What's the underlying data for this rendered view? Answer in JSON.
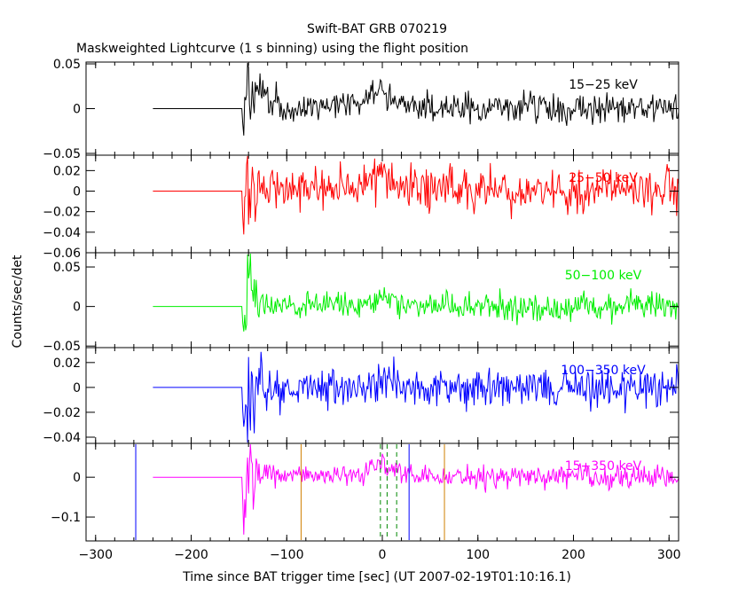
{
  "chart_data": {
    "type": "line",
    "title": "Swift-BAT GRB 070219",
    "subtitle": "Maskweighted Lightcurve (1 s binning) using the flight position",
    "xlabel": "Time since BAT trigger time [sec] (UT 2007-02-19T01:10:16.1)",
    "ylabel": "Counts/sec/det",
    "xlim": [
      -310,
      310
    ],
    "xticks": [
      "−300",
      "−200",
      "−100",
      "0",
      "100",
      "200",
      "300"
    ],
    "xtick_values": [
      -300,
      -200,
      -100,
      0,
      100,
      200,
      300
    ],
    "grid": false,
    "panels": [
      {
        "band": "15−25 keV",
        "color": "#000000",
        "ylim": [
          -0.052,
          0.052
        ],
        "ytick_values": [
          -0.05,
          0,
          0.05
        ],
        "ytick_labels": [
          "−0.05",
          "0",
          "0.05"
        ],
        "x": [
          -240,
          -147,
          -140,
          -130,
          -100,
          -60,
          -20,
          -5,
          0,
          5,
          20,
          60,
          100,
          200,
          310
        ],
        "y": [
          0,
          0,
          0.028,
          0.012,
          0.002,
          0.003,
          0.006,
          0.016,
          0.028,
          0.012,
          0.005,
          0.002,
          0.001,
          0.001,
          0.001
        ],
        "noise": [
          0,
          0,
          0.03,
          0.014,
          0.007,
          0.007,
          0.007,
          0.007,
          0.007,
          0.007,
          0.008,
          0.008,
          0.008,
          0.008,
          0.008
        ]
      },
      {
        "band": "25−50 keV",
        "color": "#ff0000",
        "ylim": [
          -0.06,
          0.035
        ],
        "ytick_values": [
          -0.06,
          -0.04,
          -0.02,
          0,
          0.02
        ],
        "ytick_labels": [
          "−0.06",
          "−0.04",
          "−0.02",
          "0",
          "0.02"
        ],
        "x": [
          -240,
          -147,
          -140,
          -130,
          -100,
          -60,
          -20,
          -5,
          0,
          5,
          20,
          60,
          100,
          200,
          310
        ],
        "y": [
          0,
          0,
          0.004,
          0.004,
          0.002,
          0.002,
          0.005,
          0.012,
          0.022,
          0.01,
          0.004,
          0.002,
          0.001,
          0.001,
          0.001
        ],
        "noise": [
          0,
          0,
          0.028,
          0.016,
          0.01,
          0.01,
          0.01,
          0.01,
          0.01,
          0.01,
          0.011,
          0.011,
          0.011,
          0.011,
          0.011
        ]
      },
      {
        "band": "50−100 keV",
        "color": "#00ee00",
        "ylim": [
          -0.052,
          0.068
        ],
        "ytick_values": [
          -0.05,
          0,
          0.05
        ],
        "ytick_labels": [
          "−0.05",
          "0",
          "0.05"
        ],
        "x": [
          -240,
          -147,
          -140,
          -130,
          -100,
          -60,
          -20,
          -5,
          0,
          5,
          20,
          60,
          100,
          200,
          310
        ],
        "y": [
          0,
          0,
          0.012,
          0.004,
          0.002,
          0.002,
          0.004,
          0.008,
          0.014,
          0.006,
          0.002,
          0.001,
          0.001,
          0,
          0
        ],
        "noise": [
          0,
          0,
          0.035,
          0.014,
          0.008,
          0.008,
          0.008,
          0.008,
          0.008,
          0.008,
          0.009,
          0.009,
          0.009,
          0.009,
          0.009
        ]
      },
      {
        "band": "100−350 keV",
        "color": "#0000ff",
        "ylim": [
          -0.045,
          0.032
        ],
        "ytick_values": [
          -0.04,
          -0.02,
          0,
          0.02
        ],
        "ytick_labels": [
          "−0.04",
          "−0.02",
          "0",
          "0.02"
        ],
        "x": [
          -240,
          -147,
          -140,
          -130,
          -100,
          -60,
          -20,
          -5,
          0,
          5,
          20,
          60,
          100,
          200,
          310
        ],
        "y": [
          0,
          0,
          0.004,
          -0.004,
          -0.002,
          0.0,
          0.001,
          0.002,
          0.004,
          0.002,
          0.001,
          0.0,
          0.0,
          0.0,
          0.0
        ],
        "noise": [
          0,
          0,
          0.03,
          0.014,
          0.008,
          0.008,
          0.008,
          0.008,
          0.008,
          0.008,
          0.008,
          0.008,
          0.008,
          0.008,
          0.008
        ]
      },
      {
        "band": "15−350 keV",
        "color": "#ff00ff",
        "ylim": [
          -0.16,
          0.085
        ],
        "ytick_values": [
          -0.1,
          0
        ],
        "ytick_labels": [
          "−0.1",
          "0"
        ],
        "x": [
          -240,
          -147,
          -140,
          -130,
          -100,
          -60,
          -20,
          -5,
          0,
          5,
          20,
          60,
          100,
          200,
          310
        ],
        "y": [
          0,
          0,
          0.02,
          0.01,
          0.004,
          0.004,
          0.01,
          0.03,
          0.055,
          0.025,
          0.008,
          0.003,
          0.002,
          0.002,
          0.002
        ],
        "noise": [
          0,
          0,
          0.06,
          0.024,
          0.013,
          0.013,
          0.013,
          0.013,
          0.013,
          0.013,
          0.014,
          0.014,
          0.014,
          0.014,
          0.014
        ]
      }
    ],
    "markers": {
      "blue_vertical_x": [
        -258,
        28
      ],
      "orange_vertical_x": [
        -85,
        65
      ],
      "green_dashed_x": [
        -2,
        5,
        15
      ]
    },
    "noise_seed": 70219
  }
}
